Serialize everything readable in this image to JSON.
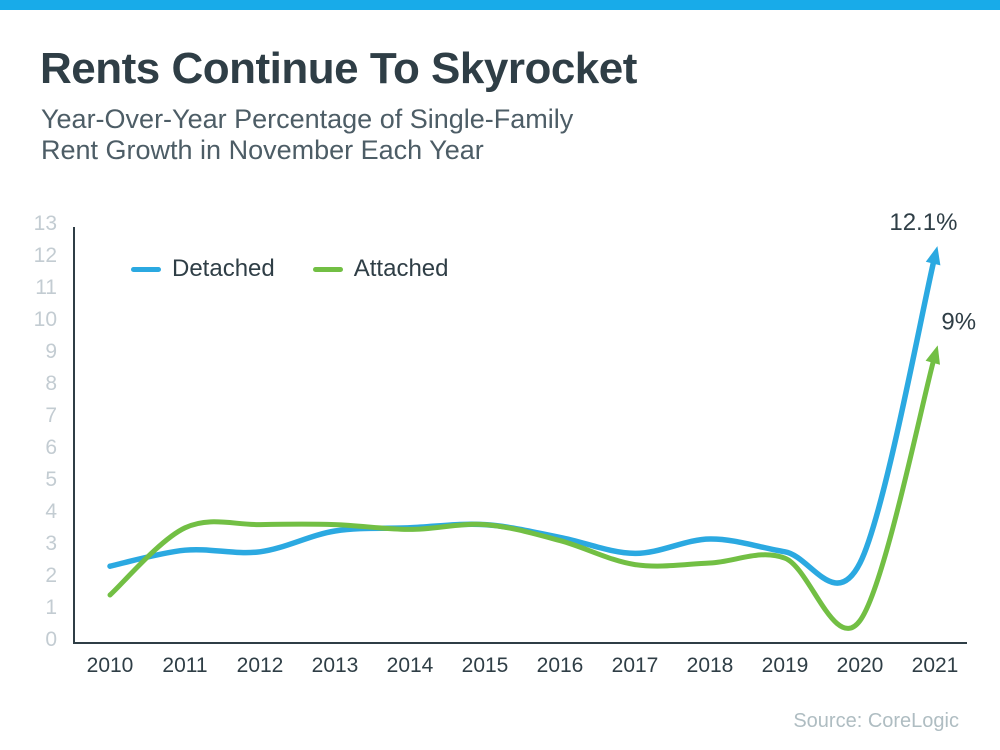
{
  "page": {
    "accent_bar_color": "#18ABE9",
    "title": "Rents Continue To Skyrocket",
    "subtitle_line1": "Year-Over-Year Percentage of Single-Family",
    "subtitle_line2": "Rent Growth in November Each Year",
    "source": "Source: CoreLogic"
  },
  "chart_data": {
    "type": "line",
    "title": "Rents Continue To Skyrocket",
    "subtitle": "Year-Over-Year Percentage of Single-Family Rent Growth in November Each Year",
    "categories": [
      "2010",
      "2011",
      "2012",
      "2013",
      "2014",
      "2015",
      "2016",
      "2017",
      "2018",
      "2019",
      "2020",
      "2021"
    ],
    "series": [
      {
        "name": "Detached",
        "color": "#2BA9E1",
        "values": [
          2.4,
          2.9,
          2.85,
          3.5,
          3.6,
          3.7,
          3.3,
          2.8,
          3.25,
          2.85,
          2.5,
          12.1
        ],
        "end_annotation": "12.1%"
      },
      {
        "name": "Attached",
        "color": "#72BF44",
        "values": [
          1.5,
          3.6,
          3.7,
          3.7,
          3.55,
          3.7,
          3.2,
          2.45,
          2.5,
          2.65,
          0.7,
          9.0
        ],
        "end_annotation": "9%"
      }
    ],
    "xlabel": "",
    "ylabel": "",
    "ylim": [
      0,
      13
    ],
    "yticks": [
      0,
      1,
      2,
      3,
      4,
      5,
      6,
      7,
      8,
      9,
      10,
      11,
      12,
      13
    ],
    "grid": false,
    "legend_position": "top-left-inside",
    "axis_color": "#2F3E46",
    "tick_label_color_y": "#C3CCD2",
    "tick_label_color_x": "#2F3E46",
    "annotation_color": "#2F3E46"
  }
}
